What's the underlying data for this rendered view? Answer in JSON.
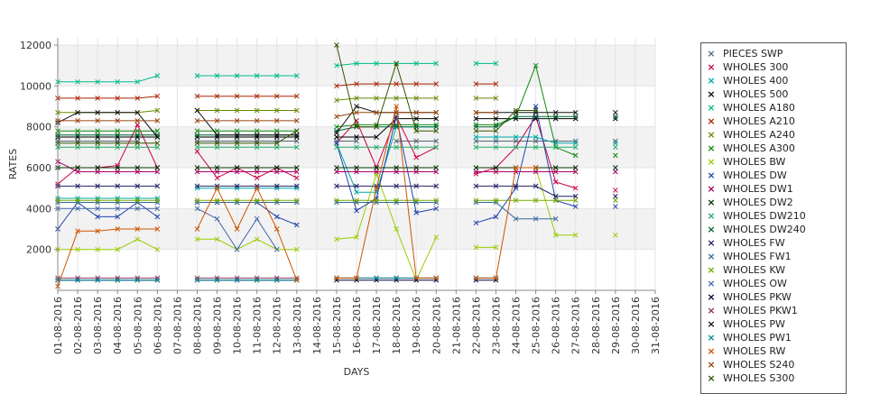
{
  "chart_data": {
    "type": "line",
    "xlabel": "DAYS",
    "ylabel": "RATES",
    "ylim": [
      0,
      12000
    ],
    "yticks": [
      2000,
      4000,
      6000,
      8000,
      10000,
      12000
    ],
    "grid": "alternating horizontal bands",
    "legend_position": "right",
    "x": [
      "01-08-2016",
      "02-08-2016",
      "03-08-2016",
      "04-08-2016",
      "05-08-2016",
      "06-08-2016",
      "07-08-2016",
      "08-08-2016",
      "09-08-2016",
      "10-08-2016",
      "11-08-2016",
      "12-08-2016",
      "13-08-2016",
      "14-08-2016",
      "15-08-2016",
      "16-08-2016",
      "17-08-2016",
      "18-08-2016",
      "19-08-2016",
      "20-08-2016",
      "21-08-2016",
      "22-08-2016",
      "23-08-2016",
      "24-08-2016",
      "25-08-2016",
      "26-08-2016",
      "27-08-2016",
      "28-08-2016",
      "29-08-2016",
      "30-08-2016",
      "31-08-2016"
    ],
    "series": [
      {
        "name": "PIECES SWP",
        "color": "#556677",
        "values": [
          7300,
          7300,
          7300,
          7300,
          7300,
          null,
          null,
          7300,
          7300,
          7300,
          7300,
          7300,
          7300,
          null,
          7300,
          7300,
          null,
          7300,
          7300,
          7300,
          null,
          7300,
          7300,
          7300,
          7300,
          7300,
          7300,
          null,
          7300,
          null,
          null
        ]
      },
      {
        "name": "WHOLES 300",
        "color": "#cc0044",
        "values": [
          5200,
          6000,
          6000,
          6100,
          8100,
          6000,
          null,
          6800,
          5500,
          6000,
          5500,
          6000,
          5500,
          null,
          7200,
          8300,
          6000,
          8500,
          6500,
          7000,
          null,
          5700,
          6000,
          7000,
          8500,
          5300,
          5000,
          null,
          4900,
          null,
          null
        ]
      },
      {
        "name": "WHOLES 400",
        "color": "#00aaaa",
        "values": [
          4500,
          4500,
          4500,
          4500,
          4500,
          4500,
          null,
          5000,
          5000,
          5000,
          5000,
          5000,
          5000,
          null,
          7200,
          4800,
          4800,
          8000,
          8000,
          8000,
          null,
          7500,
          7500,
          7500,
          7500,
          7200,
          7200,
          null,
          7200,
          null,
          null
        ]
      },
      {
        "name": "WHOLES 500",
        "color": "#000000",
        "values": [
          7500,
          7500,
          7500,
          7500,
          7500,
          7500,
          null,
          7500,
          7500,
          7500,
          7500,
          7500,
          7500,
          null,
          7500,
          7500,
          7500,
          8400,
          8400,
          8400,
          null,
          8400,
          8400,
          8400,
          8400,
          8400,
          8400,
          null,
          8400,
          null,
          null
        ]
      },
      {
        "name": "WHOLES A180",
        "color": "#00bb88",
        "values": [
          10200,
          10200,
          10200,
          10200,
          10200,
          10500,
          null,
          10500,
          10500,
          10500,
          10500,
          10500,
          10500,
          null,
          11000,
          11100,
          11100,
          11100,
          11100,
          11100,
          null,
          11100,
          11100,
          null,
          null,
          null,
          null,
          null,
          null,
          null,
          null
        ]
      },
      {
        "name": "WHOLES A210",
        "color": "#aa2200",
        "values": [
          9400,
          9400,
          9400,
          9400,
          9400,
          9500,
          null,
          9500,
          9500,
          9500,
          9500,
          9500,
          9500,
          null,
          10000,
          10100,
          10100,
          10100,
          10100,
          10100,
          null,
          10100,
          10100,
          null,
          null,
          null,
          null,
          null,
          null,
          null,
          null
        ]
      },
      {
        "name": "WHOLES A240",
        "color": "#668800",
        "values": [
          8700,
          8700,
          8700,
          8700,
          8700,
          8800,
          null,
          8800,
          8800,
          8800,
          8800,
          8800,
          8800,
          null,
          9300,
          9400,
          9400,
          9400,
          9400,
          9400,
          null,
          9400,
          9400,
          null,
          null,
          null,
          null,
          null,
          null,
          null,
          null
        ]
      },
      {
        "name": "WHOLES A300",
        "color": "#118811",
        "values": [
          7800,
          7800,
          7800,
          7800,
          7800,
          7800,
          null,
          7800,
          7800,
          7800,
          7800,
          7800,
          7800,
          null,
          8000,
          8100,
          8100,
          8100,
          8100,
          8100,
          null,
          8100,
          8100,
          8500,
          11000,
          7000,
          6600,
          null,
          6600,
          null,
          null
        ]
      },
      {
        "name": "WHOLES BW",
        "color": "#99cc00",
        "values": [
          2000,
          2000,
          2000,
          2000,
          2500,
          2000,
          null,
          2500,
          2500,
          2000,
          2500,
          2000,
          2000,
          null,
          2500,
          2600,
          5700,
          3000,
          500,
          2600,
          null,
          2100,
          2100,
          null,
          6000,
          2700,
          2700,
          null,
          2700,
          null,
          null
        ]
      },
      {
        "name": "WHOLES DW",
        "color": "#2244aa",
        "values": [
          3000,
          4300,
          3600,
          3600,
          4300,
          3600,
          null,
          4300,
          4300,
          4300,
          4300,
          3600,
          3200,
          null,
          7200,
          3900,
          4500,
          8500,
          3800,
          4000,
          null,
          3300,
          3600,
          5000,
          9000,
          4400,
          4100,
          null,
          4100,
          null,
          null
        ]
      },
      {
        "name": "WHOLES DW1",
        "color": "#aa0066",
        "values": [
          6300,
          5800,
          5800,
          5800,
          5800,
          5800,
          null,
          5800,
          5800,
          5800,
          5800,
          5800,
          5800,
          null,
          5800,
          5800,
          5800,
          5800,
          5800,
          5800,
          null,
          5800,
          5800,
          5800,
          5800,
          5800,
          5800,
          null,
          5800,
          null,
          null
        ]
      },
      {
        "name": "WHOLES DW2",
        "color": "#003300",
        "values": [
          6000,
          6000,
          6000,
          6000,
          6000,
          6000,
          null,
          6000,
          6000,
          6000,
          6000,
          6000,
          6000,
          null,
          6000,
          6000,
          6000,
          6000,
          6000,
          6000,
          null,
          6000,
          6000,
          6000,
          6000,
          6000,
          6000,
          null,
          6000,
          null,
          null
        ]
      },
      {
        "name": "WHOLES DW210",
        "color": "#22aa66",
        "values": [
          7000,
          7000,
          7000,
          7000,
          7000,
          7000,
          null,
          7000,
          7000,
          7000,
          7000,
          7000,
          7000,
          null,
          7000,
          7000,
          7000,
          7000,
          7000,
          7000,
          null,
          7000,
          7000,
          7000,
          7000,
          7000,
          7000,
          null,
          7000,
          null,
          null
        ]
      },
      {
        "name": "WHOLES DW240",
        "color": "#006633",
        "values": [
          7600,
          7600,
          7600,
          7600,
          7600,
          7600,
          null,
          7600,
          7600,
          7600,
          7600,
          7600,
          7600,
          null,
          7800,
          8000,
          8000,
          8000,
          8000,
          8000,
          null,
          8000,
          8000,
          8500,
          8500,
          8500,
          8500,
          null,
          8500,
          null,
          null
        ]
      },
      {
        "name": "WHOLES FW",
        "color": "#222266",
        "values": [
          5100,
          5100,
          5100,
          5100,
          5100,
          5100,
          null,
          5100,
          5100,
          5100,
          5100,
          5100,
          5100,
          null,
          5100,
          5100,
          5100,
          5100,
          5100,
          5100,
          null,
          5100,
          5100,
          5100,
          5100,
          4600,
          4600,
          null,
          4600,
          null,
          null
        ]
      },
      {
        "name": "WHOLES FW1",
        "color": "#336699",
        "values": [
          4300,
          4300,
          4300,
          4300,
          4300,
          4300,
          null,
          4300,
          4300,
          4300,
          4300,
          4300,
          4300,
          null,
          4300,
          4300,
          4300,
          4300,
          4300,
          4300,
          null,
          4300,
          4300,
          3500,
          3500,
          3500,
          null,
          null,
          null,
          null,
          null
        ]
      },
      {
        "name": "WHOLES KW",
        "color": "#77aa00",
        "values": [
          4400,
          4400,
          4400,
          4400,
          4400,
          4400,
          null,
          4400,
          4400,
          4400,
          4400,
          4400,
          4400,
          null,
          4400,
          4400,
          4400,
          4400,
          4400,
          4400,
          null,
          4400,
          4400,
          4400,
          4400,
          4400,
          4400,
          null,
          4400,
          null,
          null
        ]
      },
      {
        "name": "WHOLES OW",
        "color": "#4466aa",
        "values": [
          4000,
          4000,
          4000,
          4000,
          4000,
          4000,
          null,
          4000,
          3500,
          2000,
          3500,
          2000,
          null,
          null,
          null,
          null,
          null,
          null,
          null,
          null,
          null,
          null,
          null,
          null,
          null,
          null,
          null,
          null,
          null,
          null,
          null
        ]
      },
      {
        "name": "WHOLES PKW",
        "color": "#000033",
        "values": [
          500,
          500,
          500,
          500,
          500,
          500,
          null,
          500,
          500,
          500,
          500,
          500,
          500,
          null,
          500,
          500,
          500,
          500,
          500,
          500,
          null,
          500,
          500,
          null,
          null,
          null,
          null,
          null,
          null,
          null,
          null
        ]
      },
      {
        "name": "WHOLES PKW1",
        "color": "#883355",
        "values": [
          600,
          600,
          600,
          600,
          600,
          600,
          null,
          600,
          600,
          600,
          600,
          600,
          600,
          null,
          600,
          600,
          600,
          600,
          600,
          600,
          null,
          600,
          600,
          null,
          null,
          null,
          null,
          null,
          null,
          null,
          null
        ]
      },
      {
        "name": "WHOLES PW",
        "color": "#111111",
        "values": [
          8200,
          8700,
          8700,
          8700,
          8700,
          7500,
          null,
          8800,
          7600,
          7600,
          7600,
          7600,
          7600,
          null,
          7700,
          9000,
          8700,
          8700,
          8700,
          8700,
          null,
          8700,
          8700,
          8700,
          8700,
          8700,
          8700,
          null,
          8700,
          null,
          null
        ]
      },
      {
        "name": "WHOLES PW1",
        "color": "#008899",
        "values": [
          500,
          500,
          500,
          500,
          500,
          500,
          null,
          500,
          500,
          500,
          500,
          500,
          500,
          null,
          600,
          600,
          600,
          600,
          600,
          600,
          null,
          600,
          600,
          null,
          null,
          null,
          null,
          null,
          null,
          null,
          null
        ]
      },
      {
        "name": "WHOLES RW",
        "color": "#cc5500",
        "values": [
          200,
          2900,
          2900,
          3000,
          3000,
          3000,
          null,
          3000,
          5000,
          3000,
          5000,
          3000,
          500,
          null,
          600,
          600,
          5000,
          9000,
          600,
          600,
          null,
          600,
          600,
          6000,
          6000,
          null,
          null,
          null,
          null,
          null,
          null
        ]
      },
      {
        "name": "WHOLES S240",
        "color": "#994411",
        "values": [
          8300,
          8300,
          8300,
          8300,
          8300,
          8300,
          null,
          8300,
          8300,
          8300,
          8300,
          8300,
          8300,
          null,
          8500,
          8700,
          8700,
          8700,
          8700,
          8700,
          null,
          8700,
          8700,
          null,
          null,
          null,
          null,
          null,
          null,
          null,
          null
        ]
      },
      {
        "name": "WHOLES S300",
        "color": "#335500",
        "values": [
          7200,
          7200,
          7200,
          7200,
          7200,
          7200,
          null,
          7200,
          7200,
          7200,
          7200,
          7200,
          7800,
          null,
          12000,
          8000,
          8000,
          11100,
          7800,
          7800,
          null,
          7800,
          7800,
          8800,
          8800,
          null,
          null,
          null,
          null,
          null,
          null
        ]
      }
    ]
  }
}
